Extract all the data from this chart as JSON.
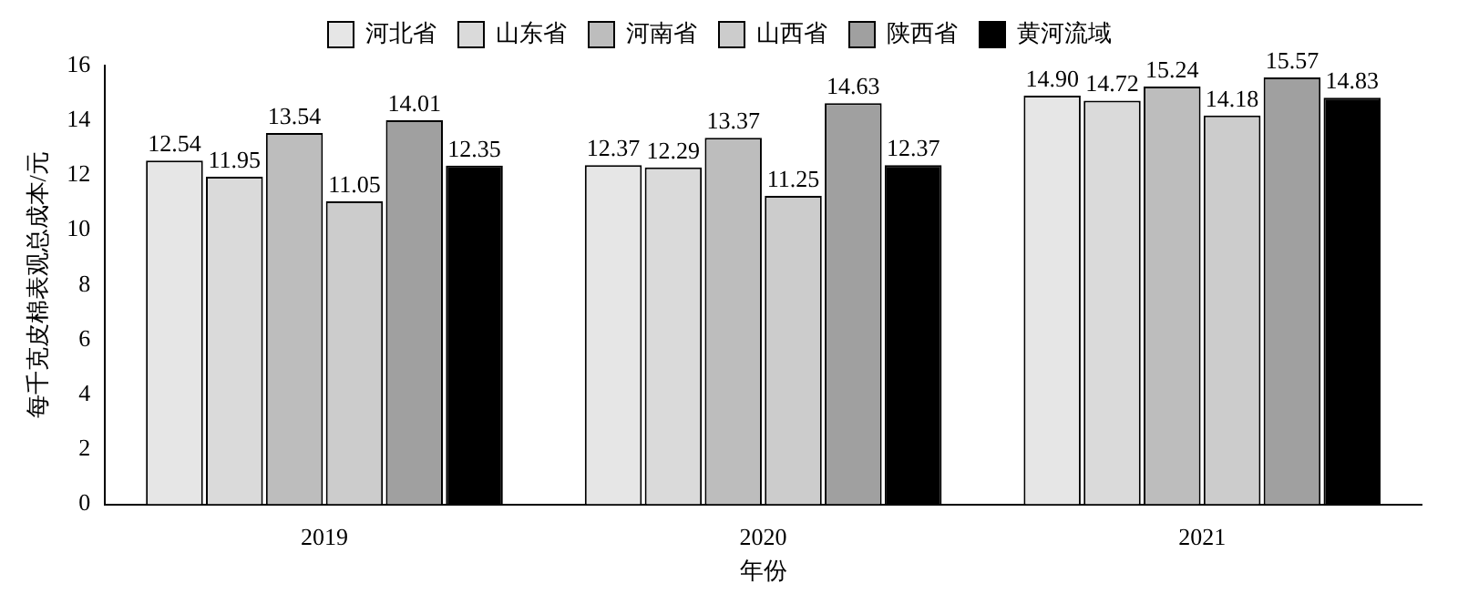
{
  "chart_data": {
    "type": "bar",
    "xlabel": "年份",
    "ylabel": "每千克皮棉表观总成本/元",
    "categories": [
      "2019",
      "2020",
      "2021"
    ],
    "series": [
      {
        "name": "河北省",
        "color": "#e6e6e6",
        "values": [
          12.54,
          12.37,
          14.9
        ],
        "value_labels": [
          "12.54",
          "12.37",
          "14.90"
        ]
      },
      {
        "name": "山东省",
        "color": "#dadada",
        "values": [
          11.95,
          12.29,
          14.72
        ],
        "value_labels": [
          "11.95",
          "12.29",
          "14.72"
        ]
      },
      {
        "name": "河南省",
        "color": "#bdbdbd",
        "values": [
          13.54,
          13.37,
          15.24
        ],
        "value_labels": [
          "13.54",
          "13.37",
          "15.24"
        ]
      },
      {
        "name": "山西省",
        "color": "#cccccc",
        "values": [
          11.05,
          11.25,
          14.18
        ],
        "value_labels": [
          "11.05",
          "11.25",
          "14.18"
        ]
      },
      {
        "name": "陕西省",
        "color": "#a0a0a0",
        "values": [
          14.01,
          14.63,
          15.57
        ],
        "value_labels": [
          "14.01",
          "14.63",
          "15.57"
        ]
      },
      {
        "name": "黄河流域",
        "color": "#000000",
        "values": [
          12.35,
          12.37,
          14.83
        ],
        "value_labels": [
          "12.35",
          "12.37",
          "14.83"
        ]
      }
    ],
    "ylim": [
      0,
      16
    ],
    "yticks": [
      0,
      2,
      4,
      6,
      8,
      10,
      12,
      14,
      16
    ],
    "grid": false,
    "legend": "top"
  }
}
